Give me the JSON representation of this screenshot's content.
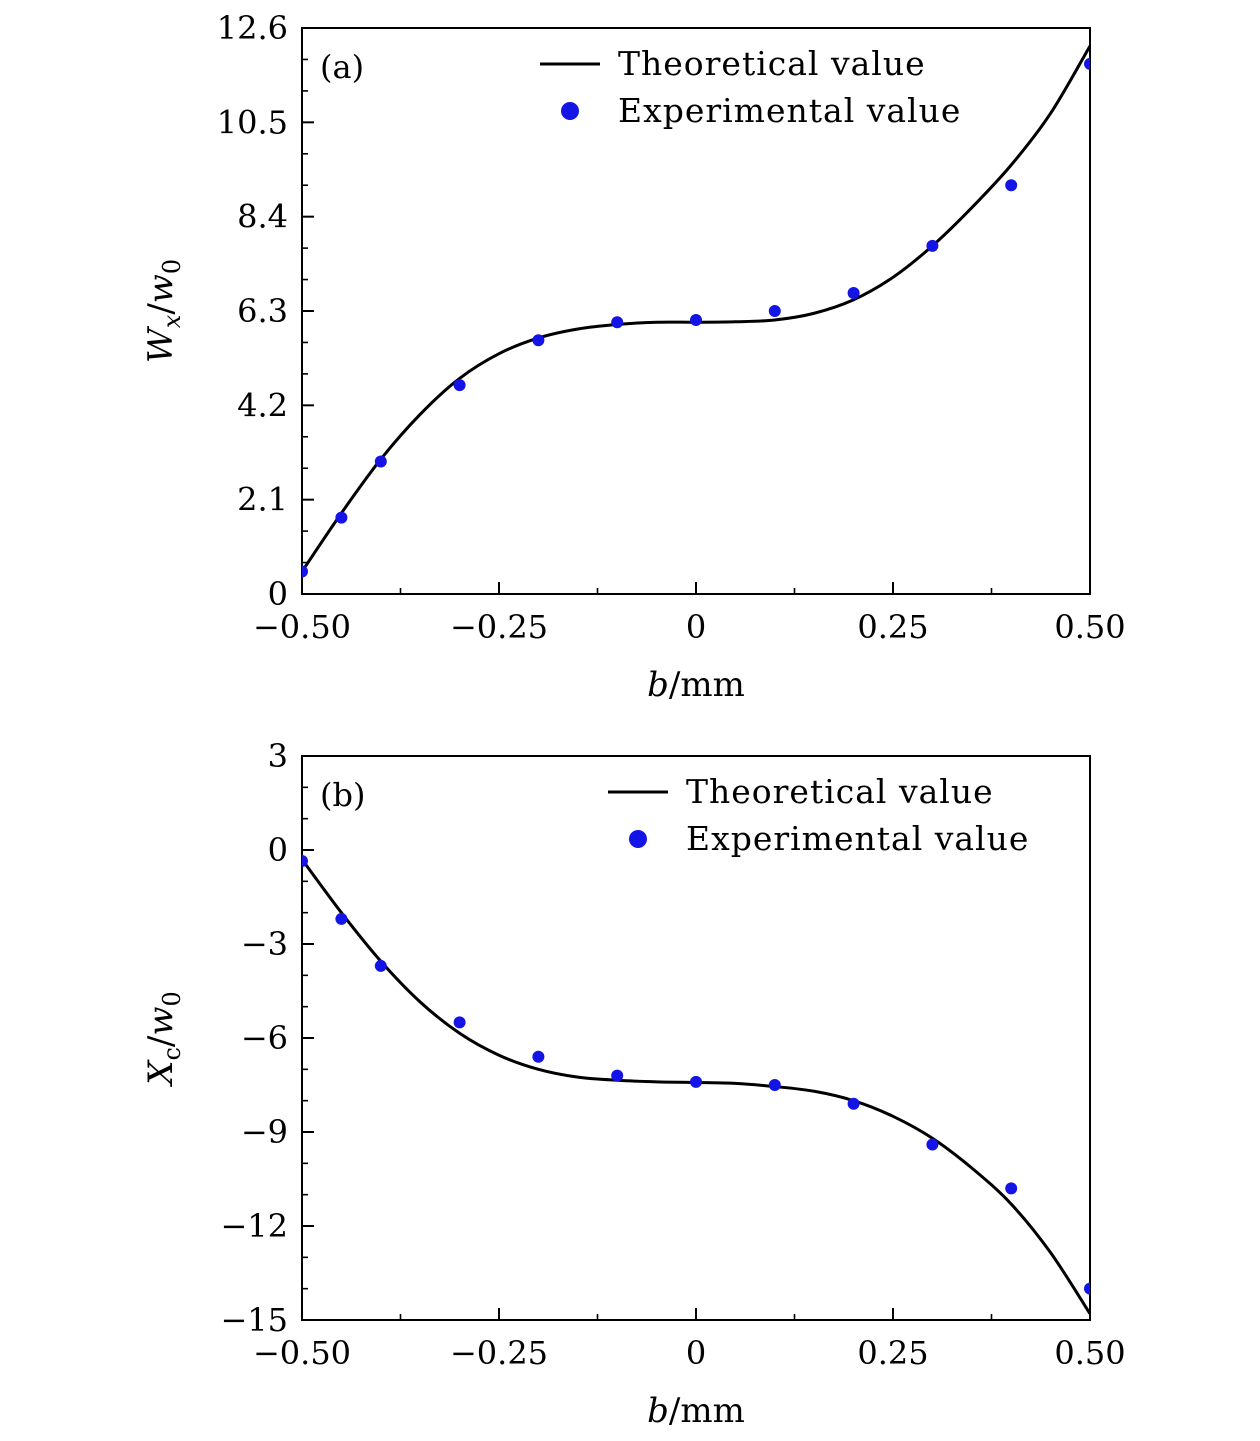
{
  "chart_data": [
    {
      "type": "line",
      "panel_label": "(a)",
      "xlabel": {
        "var": "b",
        "unit": "/mm"
      },
      "ylabel": {
        "var": "W",
        "sub": "x",
        "sep": "/",
        "var2": "w",
        "sub2": "0"
      },
      "xlim": [
        -0.5,
        0.5
      ],
      "ylim": [
        0,
        12.6
      ],
      "x_ticks": [
        -0.5,
        -0.25,
        0,
        0.25,
        0.5
      ],
      "x_tick_labels": [
        "−0.50",
        "−0.25",
        "0",
        "0.25",
        "0.50"
      ],
      "y_ticks": [
        0,
        2.1,
        4.2,
        6.3,
        8.4,
        10.5,
        12.6
      ],
      "y_tick_labels": [
        "0",
        "2.1",
        "4.2",
        "6.3",
        "8.4",
        "10.5",
        "12.6"
      ],
      "y_minor_step": 0.7,
      "legend": {
        "placement": "top-right",
        "theory": "Theoretical value",
        "experiment": "Experimental value"
      },
      "series": [
        {
          "kind": "line",
          "color": "#000000",
          "x": [
            -0.5,
            -0.45,
            -0.4,
            -0.35,
            -0.3,
            -0.25,
            -0.2,
            -0.15,
            -0.1,
            -0.05,
            0,
            0.05,
            0.1,
            0.15,
            0.2,
            0.25,
            0.3,
            0.35,
            0.4,
            0.45,
            0.5
          ],
          "y": [
            0.5,
            1.8,
            3.0,
            4.0,
            4.8,
            5.35,
            5.7,
            5.9,
            6.0,
            6.05,
            6.05,
            6.06,
            6.1,
            6.25,
            6.55,
            7.05,
            7.75,
            8.6,
            9.55,
            10.7,
            12.2
          ]
        },
        {
          "kind": "scatter",
          "color": "#1414e6",
          "x": [
            -0.5,
            -0.45,
            -0.4,
            -0.3,
            -0.2,
            -0.1,
            0,
            0.1,
            0.2,
            0.3,
            0.4,
            0.5
          ],
          "y": [
            0.5,
            1.7,
            2.95,
            4.65,
            5.65,
            6.05,
            6.1,
            6.3,
            6.7,
            7.75,
            9.1,
            11.8
          ]
        }
      ]
    },
    {
      "type": "line",
      "panel_label": "(b)",
      "xlabel": {
        "var": "b",
        "unit": "/mm"
      },
      "ylabel": {
        "var": "X",
        "sub": "c",
        "sep": "/",
        "var2": "w",
        "sub2": "0"
      },
      "xlim": [
        -0.5,
        0.5
      ],
      "ylim": [
        -15,
        3
      ],
      "x_ticks": [
        -0.5,
        -0.25,
        0,
        0.25,
        0.5
      ],
      "x_tick_labels": [
        "−0.50",
        "−0.25",
        "0",
        "0.25",
        "0.50"
      ],
      "y_ticks": [
        -15,
        -12,
        -9,
        -6,
        -3,
        0,
        3
      ],
      "y_tick_labels": [
        "−15",
        "−12",
        "−9",
        "−6",
        "−3",
        "0",
        "3"
      ],
      "y_minor_step": 1,
      "legend": {
        "placement": "top-right",
        "theory": "Theoretical value",
        "experiment": "Experimental value"
      },
      "series": [
        {
          "kind": "line",
          "color": "#000000",
          "x": [
            -0.5,
            -0.45,
            -0.4,
            -0.35,
            -0.3,
            -0.25,
            -0.2,
            -0.15,
            -0.1,
            -0.05,
            0,
            0.05,
            0.1,
            0.15,
            0.2,
            0.25,
            0.3,
            0.35,
            0.4,
            0.45,
            0.5
          ],
          "y": [
            -0.3,
            -2.0,
            -3.55,
            -4.85,
            -5.85,
            -6.55,
            -7.0,
            -7.25,
            -7.35,
            -7.4,
            -7.42,
            -7.45,
            -7.55,
            -7.7,
            -8.0,
            -8.5,
            -9.2,
            -10.15,
            -11.3,
            -12.85,
            -14.8
          ]
        },
        {
          "kind": "scatter",
          "color": "#1414e6",
          "x": [
            -0.5,
            -0.45,
            -0.4,
            -0.3,
            -0.2,
            -0.1,
            0,
            0.1,
            0.2,
            0.3,
            0.4,
            0.5
          ],
          "y": [
            -0.35,
            -2.2,
            -3.7,
            -5.5,
            -6.6,
            -7.2,
            -7.4,
            -7.5,
            -8.1,
            -9.4,
            -10.8,
            -14.0
          ]
        }
      ]
    }
  ]
}
